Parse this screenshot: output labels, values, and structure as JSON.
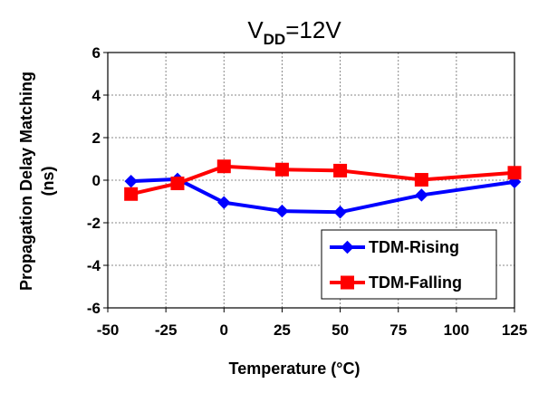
{
  "chart_data": {
    "type": "line",
    "title_main": "V",
    "title_subscript": "DD",
    "title_suffix": "=12V",
    "xlabel": "Temperature (°C)",
    "ylabel_line1": "Propagation Delay Matching",
    "ylabel_line2": "(ns)",
    "xlim": [
      -50,
      125
    ],
    "ylim": [
      -6,
      6
    ],
    "x_ticks": [
      -50,
      -25,
      0,
      25,
      50,
      75,
      100,
      125
    ],
    "y_ticks": [
      -6,
      -4,
      -2,
      0,
      2,
      4,
      6
    ],
    "x_tick_labels": [
      "-50",
      "-25",
      "0",
      "25",
      "50",
      "75",
      "100",
      "125"
    ],
    "y_tick_labels": [
      "-6",
      "-4",
      "-2",
      "0",
      "2",
      "4",
      "6"
    ],
    "grid": true,
    "legend_position": "bottom-right",
    "series": [
      {
        "name": "TDM-Rising",
        "color": "#0000ff",
        "marker": "diamond",
        "x": [
          -40,
          -20,
          0,
          25,
          50,
          85,
          125
        ],
        "values": [
          -0.05,
          0.05,
          -1.05,
          -1.45,
          -1.5,
          -0.7,
          -0.08
        ]
      },
      {
        "name": "TDM-Falling",
        "color": "#ff0000",
        "marker": "square",
        "x": [
          -40,
          -20,
          0,
          25,
          50,
          85,
          125
        ],
        "values": [
          -0.65,
          -0.15,
          0.65,
          0.5,
          0.45,
          0.02,
          0.35
        ]
      }
    ]
  }
}
